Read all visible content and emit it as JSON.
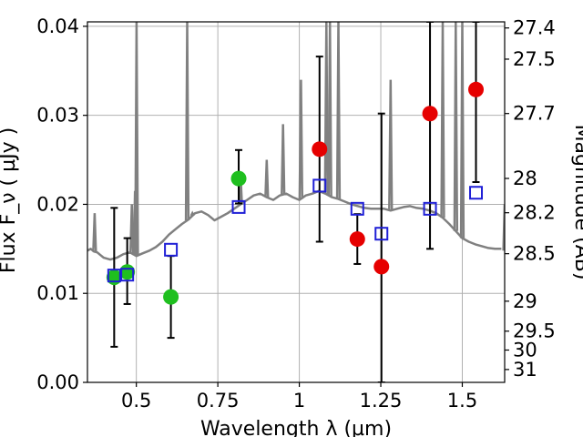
{
  "chart_data": {
    "type": "scatter",
    "xlabel": "Wavelength  λ (µm)",
    "ylabel": "Flux  F_ν  ( µJy )",
    "ylabel_right": "Magnitude (AB)",
    "xlim": [
      0.35,
      1.63
    ],
    "ylim": [
      0.0,
      0.0405
    ],
    "x_ticks": [
      0.5,
      0.75,
      1.0,
      1.25,
      1.5
    ],
    "x_tick_labels": [
      "0.5",
      "0.75",
      "1",
      "1.25",
      "1.5"
    ],
    "y_ticks": [
      0.0,
      0.01,
      0.02,
      0.03,
      0.04
    ],
    "y_tick_labels": [
      "0.00",
      "0.01",
      "0.02",
      "0.03",
      "0.04"
    ],
    "mag_ticks": [
      27.4,
      27.5,
      27.7,
      28,
      28.2,
      28.5,
      29,
      29.5,
      30,
      31
    ],
    "mag_tick_labels": [
      "27.4",
      "27.5",
      "27.7",
      "28",
      "28.2",
      "28.5",
      "29",
      "29.5",
      "30",
      "31"
    ],
    "grid": true,
    "series": [
      {
        "marker": "line",
        "color": "#808080",
        "points": [
          [
            0.35,
            0.0148
          ],
          [
            0.36,
            0.015
          ],
          [
            0.37,
            0.0147
          ],
          [
            0.38,
            0.0146
          ],
          [
            0.39,
            0.0143
          ],
          [
            0.4,
            0.014
          ],
          [
            0.42,
            0.0138
          ],
          [
            0.44,
            0.014
          ],
          [
            0.46,
            0.0144
          ],
          [
            0.48,
            0.0146
          ],
          [
            0.5,
            0.0142
          ],
          [
            0.52,
            0.0145
          ],
          [
            0.54,
            0.0148
          ],
          [
            0.56,
            0.0152
          ],
          [
            0.58,
            0.0158
          ],
          [
            0.6,
            0.0166
          ],
          [
            0.62,
            0.0172
          ],
          [
            0.64,
            0.0178
          ],
          [
            0.66,
            0.0183
          ],
          [
            0.68,
            0.019
          ],
          [
            0.7,
            0.0192
          ],
          [
            0.72,
            0.0188
          ],
          [
            0.74,
            0.0182
          ],
          [
            0.76,
            0.0186
          ],
          [
            0.78,
            0.019
          ],
          [
            0.8,
            0.0195
          ],
          [
            0.82,
            0.02
          ],
          [
            0.84,
            0.0205
          ],
          [
            0.86,
            0.021
          ],
          [
            0.88,
            0.0212
          ],
          [
            0.9,
            0.0208
          ],
          [
            0.92,
            0.0205
          ],
          [
            0.94,
            0.021
          ],
          [
            0.96,
            0.0212
          ],
          [
            0.98,
            0.0208
          ],
          [
            1.0,
            0.0205
          ],
          [
            1.02,
            0.021
          ],
          [
            1.04,
            0.0212
          ],
          [
            1.06,
            0.0215
          ],
          [
            1.08,
            0.0212
          ],
          [
            1.1,
            0.0208
          ],
          [
            1.12,
            0.0206
          ],
          [
            1.14,
            0.0203
          ],
          [
            1.16,
            0.02
          ],
          [
            1.18,
            0.0198
          ],
          [
            1.2,
            0.0196
          ],
          [
            1.22,
            0.0195
          ],
          [
            1.24,
            0.0195
          ],
          [
            1.26,
            0.0195
          ],
          [
            1.28,
            0.0193
          ],
          [
            1.3,
            0.0195
          ],
          [
            1.32,
            0.0197
          ],
          [
            1.34,
            0.0198
          ],
          [
            1.36,
            0.0196
          ],
          [
            1.38,
            0.0195
          ],
          [
            1.4,
            0.0193
          ],
          [
            1.42,
            0.019
          ],
          [
            1.44,
            0.0185
          ],
          [
            1.46,
            0.0178
          ],
          [
            1.48,
            0.017
          ],
          [
            1.5,
            0.0162
          ],
          [
            1.52,
            0.0158
          ],
          [
            1.54,
            0.0155
          ],
          [
            1.56,
            0.0153
          ],
          [
            1.58,
            0.0151
          ],
          [
            1.6,
            0.015
          ],
          [
            1.62,
            0.015
          ]
        ],
        "emission_lines": [
          [
            0.372,
            0.019
          ],
          [
            0.486,
            0.02
          ],
          [
            0.496,
            0.0215
          ],
          [
            0.5007,
            0.0405
          ],
          [
            0.656,
            0.0405
          ],
          [
            0.672,
            0.019
          ],
          [
            0.82,
            0.023
          ],
          [
            0.9,
            0.025
          ],
          [
            0.95,
            0.029
          ],
          [
            1.005,
            0.034
          ],
          [
            1.083,
            0.0405
          ],
          [
            1.094,
            0.0405
          ],
          [
            1.12,
            0.0405
          ],
          [
            1.28,
            0.034
          ],
          [
            1.44,
            0.0405
          ],
          [
            1.48,
            0.0405
          ],
          [
            1.5,
            0.0405
          ],
          [
            1.63,
            0.02
          ]
        ]
      },
      {
        "marker": "circle",
        "color": "#1fbf1f",
        "points": [
          [
            0.432,
            0.0118
          ],
          [
            0.472,
            0.0124
          ],
          [
            0.606,
            0.0096
          ],
          [
            0.814,
            0.0229
          ]
        ]
      },
      {
        "marker": "circle",
        "color": "#e60000",
        "points": [
          [
            1.062,
            0.0262
          ],
          [
            1.178,
            0.0161
          ],
          [
            1.252,
            0.013
          ],
          [
            1.401,
            0.0302
          ],
          [
            1.542,
            0.0329
          ]
        ]
      },
      {
        "marker": "square-open",
        "color": "#1f1fd6",
        "points": [
          [
            0.432,
            0.012
          ],
          [
            0.472,
            0.0121
          ],
          [
            0.606,
            0.0149
          ],
          [
            0.814,
            0.0197
          ],
          [
            1.062,
            0.0221
          ],
          [
            1.178,
            0.0195
          ],
          [
            1.252,
            0.0167
          ],
          [
            1.401,
            0.0195
          ],
          [
            1.542,
            0.0213
          ]
        ]
      },
      {
        "marker": "errorbar",
        "color": "#000000",
        "points": [
          [
            0.432,
            0.004,
            0.0196
          ],
          [
            0.472,
            0.0088,
            0.0162
          ],
          [
            0.606,
            0.005,
            0.0142
          ],
          [
            0.814,
            0.0201,
            0.0261
          ],
          [
            1.062,
            0.0158,
            0.0366
          ],
          [
            1.178,
            0.0133,
            0.0189
          ],
          [
            1.252,
            0.0,
            0.0302
          ],
          [
            1.401,
            0.015,
            0.0405
          ],
          [
            1.542,
            0.0225,
            0.0405
          ]
        ]
      }
    ]
  }
}
